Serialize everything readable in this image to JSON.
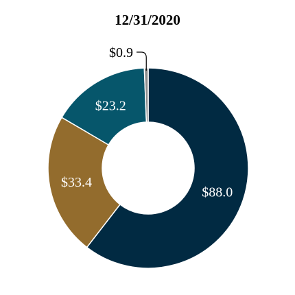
{
  "chart_data": {
    "type": "pie",
    "title": "12/31/2020",
    "donut": true,
    "slices": [
      {
        "label": "$88.0",
        "value": 88.0,
        "color": "#012a42",
        "label_color": "#ffffff"
      },
      {
        "label": "$33.4",
        "value": 33.4,
        "color": "#936c2d",
        "label_color": "#ffffff"
      },
      {
        "label": "$23.2",
        "value": 23.2,
        "color": "#06566b",
        "label_color": "#ffffff"
      },
      {
        "label": "$0.9",
        "value": 0.9,
        "color": "#8c8c8c",
        "label_color": "#000000"
      }
    ]
  }
}
